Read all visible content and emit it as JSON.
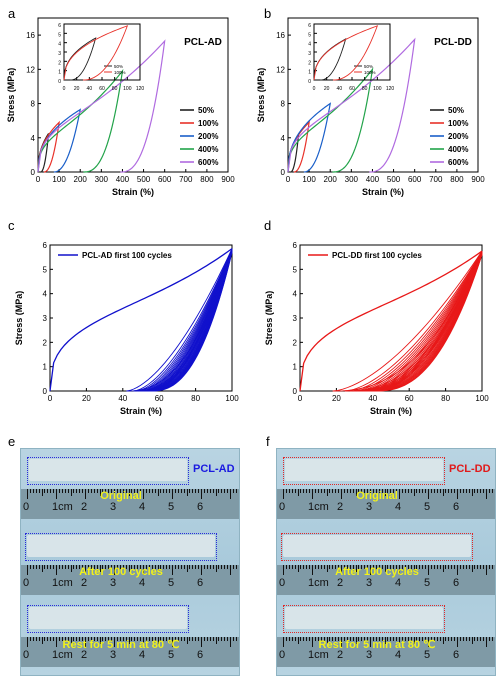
{
  "panels": {
    "a": "a",
    "b": "b",
    "c": "c",
    "d": "d",
    "e": "e",
    "f": "f"
  },
  "chart_data": [
    {
      "id": "a",
      "type": "line",
      "title": "PCL-AD",
      "xlabel": "Strain (%)",
      "ylabel": "Stress (MPa)",
      "xlim": [
        0,
        900
      ],
      "ylim": [
        0,
        18
      ],
      "xticks": [
        0,
        100,
        200,
        300,
        400,
        500,
        600,
        700,
        800,
        900
      ],
      "yticks": [
        0,
        4,
        8,
        12,
        16
      ],
      "legend_position": "right",
      "series": [
        {
          "name": "50%",
          "color": "#222222",
          "max_strain": 50,
          "max_stress": 4.5,
          "residual": 12
        },
        {
          "name": "100%",
          "color": "#e8322a",
          "max_strain": 100,
          "max_stress": 5.8,
          "residual": 28
        },
        {
          "name": "200%",
          "color": "#1a5fc9",
          "max_strain": 200,
          "max_stress": 7.3,
          "residual": 75
        },
        {
          "name": "400%",
          "color": "#22a34a",
          "max_strain": 400,
          "max_stress": 11.8,
          "residual": 215
        },
        {
          "name": "600%",
          "color": "#b06be0",
          "max_strain": 600,
          "max_stress": 15.3,
          "residual": 390
        }
      ],
      "inset": {
        "xlim": [
          0,
          120
        ],
        "ylim": [
          0,
          6
        ],
        "xticks": [
          0,
          20,
          40,
          60,
          80,
          100,
          120
        ],
        "yticks": [
          0,
          1,
          2,
          3,
          4,
          5,
          6
        ],
        "series": [
          {
            "name": "50%",
            "color": "#222222",
            "max_strain": 50,
            "max_stress": 4.5,
            "residual": 10
          },
          {
            "name": "100%",
            "color": "#e8322a",
            "max_strain": 100,
            "max_stress": 5.8,
            "residual": 30
          }
        ]
      }
    },
    {
      "id": "b",
      "type": "line",
      "title": "PCL-DD",
      "xlabel": "Strain (%)",
      "ylabel": "Stress (MPa)",
      "xlim": [
        0,
        900
      ],
      "ylim": [
        0,
        18
      ],
      "xticks": [
        0,
        100,
        200,
        300,
        400,
        500,
        600,
        700,
        800,
        900
      ],
      "yticks": [
        0,
        4,
        8,
        12,
        16
      ],
      "legend_position": "right",
      "series": [
        {
          "name": "50%",
          "color": "#222222",
          "max_strain": 50,
          "max_stress": 4.4,
          "residual": 12
        },
        {
          "name": "100%",
          "color": "#e8322a",
          "max_strain": 100,
          "max_stress": 5.8,
          "residual": 28
        },
        {
          "name": "200%",
          "color": "#1a5fc9",
          "max_strain": 200,
          "max_stress": 8.0,
          "residual": 75
        },
        {
          "name": "400%",
          "color": "#22a34a",
          "max_strain": 400,
          "max_stress": 12.0,
          "residual": 210
        },
        {
          "name": "600%",
          "color": "#b06be0",
          "max_strain": 600,
          "max_stress": 15.5,
          "residual": 385
        }
      ],
      "inset": {
        "xlim": [
          0,
          120
        ],
        "ylim": [
          0,
          6
        ],
        "xticks": [
          0,
          20,
          40,
          60,
          80,
          100,
          120
        ],
        "yticks": [
          0,
          1,
          2,
          3,
          4,
          5,
          6
        ],
        "series": [
          {
            "name": "50%",
            "color": "#222222",
            "max_strain": 50,
            "max_stress": 4.4,
            "residual": 10
          },
          {
            "name": "100%",
            "color": "#e8322a",
            "max_strain": 100,
            "max_stress": 5.8,
            "residual": 30
          }
        ]
      }
    },
    {
      "id": "c",
      "type": "line",
      "xlabel": "Strain (%)",
      "ylabel": "Stress (MPa)",
      "xlim": [
        0,
        100
      ],
      "ylim": [
        0,
        6
      ],
      "xticks": [
        0,
        20,
        40,
        60,
        80,
        100
      ],
      "yticks": [
        0,
        1,
        2,
        3,
        4,
        5,
        6
      ],
      "legend_position": "top-left",
      "series": [
        {
          "name": "PCL-AD first 100 cycles",
          "color": "#1010cc",
          "first_cycle_max_stress": 5.85,
          "first_cycle_residual": 42,
          "last_cycle_residual": 56
        }
      ]
    },
    {
      "id": "d",
      "type": "line",
      "xlabel": "Strain (%)",
      "ylabel": "Stress (MPa)",
      "xlim": [
        0,
        100
      ],
      "ylim": [
        0,
        6
      ],
      "xticks": [
        0,
        20,
        40,
        60,
        80,
        100
      ],
      "yticks": [
        0,
        1,
        2,
        3,
        4,
        5,
        6
      ],
      "legend_position": "top-left",
      "series": [
        {
          "name": "PCL-DD first 100 cycles",
          "color": "#e81818",
          "first_cycle_max_stress": 5.75,
          "first_cycle_residual": 18,
          "last_cycle_residual": 42
        }
      ]
    }
  ],
  "photos": {
    "e": {
      "sample": "PCL-AD",
      "sample_color": "#1a1ae0",
      "box_color": "#2b2bd8",
      "labels": [
        "Original",
        "After 100 cycles",
        "Rest for 5 min at 80 ℃"
      ],
      "ruler": [
        "0",
        "1cm",
        "2",
        "3",
        "4",
        "5",
        "6"
      ]
    },
    "f": {
      "sample": "PCL-DD",
      "sample_color": "#e01a1a",
      "box_color": "#e02828",
      "labels": [
        "Original",
        "After 100 cycles",
        "Rest for 5 min at 80 ℃"
      ],
      "ruler": [
        "0",
        "1cm",
        "2",
        "3",
        "4",
        "5",
        "6"
      ]
    }
  }
}
